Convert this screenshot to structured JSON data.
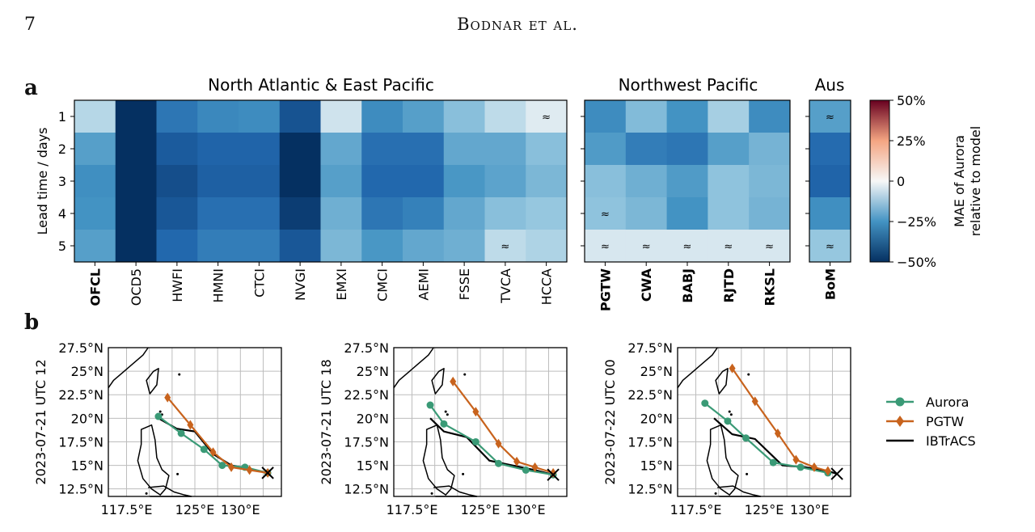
{
  "page": {
    "number": "7",
    "running_head": "Bodnar et al."
  },
  "figure": {
    "panel_a_label": "a",
    "panel_b_label": "b",
    "heatmap": {
      "y_label": "Lead time / days",
      "colorbar": {
        "label_line1": "MAE of Aurora",
        "label_line2": "relative to model",
        "ticks": [
          "50%",
          "25%",
          "0",
          "−25%",
          "−50%"
        ]
      },
      "approx_symbol": "≈"
    },
    "tracks": {
      "y_ticks": [
        "27.5°N",
        "25°N",
        "22.5°N",
        "20°N",
        "17.5°N",
        "15°N",
        "12.5°N"
      ],
      "x_ticks": [
        "117.5°E",
        "125°E",
        "130°E"
      ],
      "legend": [
        {
          "name": "Aurora",
          "color": "#3a9a76"
        },
        {
          "name": "PGTW",
          "color": "#c8631d"
        },
        {
          "name": "IBTrACS",
          "color": "#000000"
        }
      ]
    }
  },
  "chart_data": [
    {
      "type": "heatmap",
      "panel": "a",
      "title": "North Atlantic & East Pacific",
      "ylabel": "Lead time / days",
      "rows": [
        1,
        2,
        3,
        4,
        5
      ],
      "columns": [
        "OFCL",
        "OCD5",
        "HWFI",
        "HMNI",
        "CTCI",
        "NVGI",
        "EMXI",
        "CMCI",
        "AEMI",
        "FSSE",
        "TVCA",
        "HCCA"
      ],
      "bold_columns": [
        "OFCL"
      ],
      "value_units": "percent (MAE of Aurora relative to model)",
      "zlim": [
        -50,
        50
      ],
      "values": [
        [
          -8,
          -50,
          -33,
          -28,
          -27,
          -42,
          -5,
          -27,
          -22,
          -14,
          -7,
          -3
        ],
        [
          -22,
          -50,
          -40,
          -38,
          -38,
          -50,
          -20,
          -35,
          -35,
          -20,
          -20,
          -14
        ],
        [
          -26,
          -50,
          -43,
          -39,
          -39,
          -50,
          -22,
          -37,
          -37,
          -24,
          -21,
          -16
        ],
        [
          -25,
          -50,
          -41,
          -35,
          -35,
          -47,
          -18,
          -33,
          -30,
          -20,
          -14,
          -12
        ],
        [
          -22,
          -50,
          -37,
          -31,
          -31,
          -41,
          -16,
          -24,
          -20,
          -18,
          -7,
          -9
        ]
      ],
      "approx_cells": [
        [
          1,
          "HCCA"
        ],
        [
          5,
          "TVCA"
        ]
      ]
    },
    {
      "type": "heatmap",
      "panel": "a",
      "title": "Northwest Pacific",
      "rows": [
        1,
        2,
        3,
        4,
        5
      ],
      "columns": [
        "PGTW",
        "CWA",
        "BABJ",
        "RJTD",
        "RKSL"
      ],
      "bold_columns": [
        "PGTW",
        "CWA",
        "BABJ",
        "RJTD",
        "RKSL"
      ],
      "zlim": [
        -50,
        50
      ],
      "values": [
        [
          -27,
          -15,
          -25,
          -10,
          -27
        ],
        [
          -23,
          -31,
          -33,
          -22,
          -17
        ],
        [
          -14,
          -18,
          -23,
          -13,
          -16
        ],
        [
          -13,
          -16,
          -25,
          -13,
          -17
        ],
        [
          -4,
          -4,
          -4,
          -4,
          -4
        ]
      ],
      "approx_cells": [
        [
          4,
          "PGTW"
        ],
        [
          5,
          "PGTW"
        ],
        [
          5,
          "CWA"
        ],
        [
          5,
          "BABJ"
        ],
        [
          5,
          "RJTD"
        ],
        [
          5,
          "RKSL"
        ]
      ]
    },
    {
      "type": "heatmap",
      "panel": "a",
      "title": "Aus",
      "rows": [
        1,
        2,
        3,
        4,
        5
      ],
      "columns": [
        "BoM"
      ],
      "bold_columns": [
        "BoM"
      ],
      "zlim": [
        -50,
        50
      ],
      "values": [
        [
          -22
        ],
        [
          -36
        ],
        [
          -38
        ],
        [
          -26
        ],
        [
          -12
        ]
      ],
      "approx_cells": [
        [
          1,
          "BoM"
        ],
        [
          5,
          "BoM"
        ]
      ]
    },
    {
      "type": "line",
      "panel": "b",
      "ylabel": "2023-07-21 UTC 12",
      "xlim": [
        115.5,
        134.5
      ],
      "ylim": [
        11.7,
        27.5
      ],
      "series": [
        {
          "name": "Aurora",
          "lon": [
            121.0,
            123.5,
            126.0,
            128.0,
            130.5,
            133.0
          ],
          "lat": [
            20.2,
            18.4,
            16.7,
            15.0,
            14.8,
            14.2
          ]
        },
        {
          "name": "PGTW",
          "lon": [
            122.0,
            124.5,
            127.0,
            129.0,
            131.0,
            133.0
          ],
          "lat": [
            22.2,
            19.3,
            16.4,
            14.8,
            14.5,
            14.2
          ]
        },
        {
          "name": "IBTrACS",
          "lon": [
            121.0,
            123.0,
            125.0,
            127.0,
            129.0,
            131.0,
            133.0
          ],
          "lat": [
            20.0,
            18.9,
            18.6,
            16.2,
            15.0,
            14.6,
            14.2
          ]
        }
      ]
    },
    {
      "type": "line",
      "panel": "b",
      "ylabel": "2023-07-21 UTC 18",
      "xlim": [
        115.5,
        134.5
      ],
      "ylim": [
        11.7,
        27.5
      ],
      "series": [
        {
          "name": "Aurora",
          "lon": [
            119.5,
            121.0,
            124.5,
            127.0,
            130.0,
            133.0
          ],
          "lat": [
            21.4,
            19.4,
            17.5,
            15.2,
            14.5,
            14.0
          ]
        },
        {
          "name": "PGTW",
          "lon": [
            122.0,
            124.5,
            127.0,
            129.0,
            131.0,
            133.0
          ],
          "lat": [
            23.9,
            20.7,
            17.3,
            15.4,
            14.8,
            14.2
          ]
        },
        {
          "name": "IBTrACS",
          "lon": [
            119.5,
            121.0,
            123.5,
            126.0,
            128.5,
            131.0,
            133.0
          ],
          "lat": [
            20.0,
            18.6,
            18.0,
            15.5,
            15.0,
            14.5,
            14.0
          ]
        }
      ]
    },
    {
      "type": "line",
      "panel": "b",
      "ylabel": "2023-07-22 UTC 00",
      "xlim": [
        115.5,
        134.5
      ],
      "ylim": [
        11.7,
        27.5
      ],
      "series": [
        {
          "name": "Aurora",
          "lon": [
            118.5,
            121.0,
            123.0,
            126.0,
            129.0,
            132.0
          ],
          "lat": [
            21.6,
            19.7,
            17.9,
            15.3,
            14.8,
            14.2
          ]
        },
        {
          "name": "PGTW",
          "lon": [
            121.5,
            124.0,
            126.5,
            128.5,
            130.5,
            132.0
          ],
          "lat": [
            25.3,
            21.8,
            18.4,
            15.6,
            14.8,
            14.4
          ]
        },
        {
          "name": "IBTrACS",
          "lon": [
            119.5,
            121.5,
            124.0,
            127.0,
            129.5,
            132.0,
            133.0
          ],
          "lat": [
            20.0,
            18.3,
            17.8,
            15.0,
            14.8,
            14.4,
            14.1
          ]
        }
      ]
    }
  ]
}
